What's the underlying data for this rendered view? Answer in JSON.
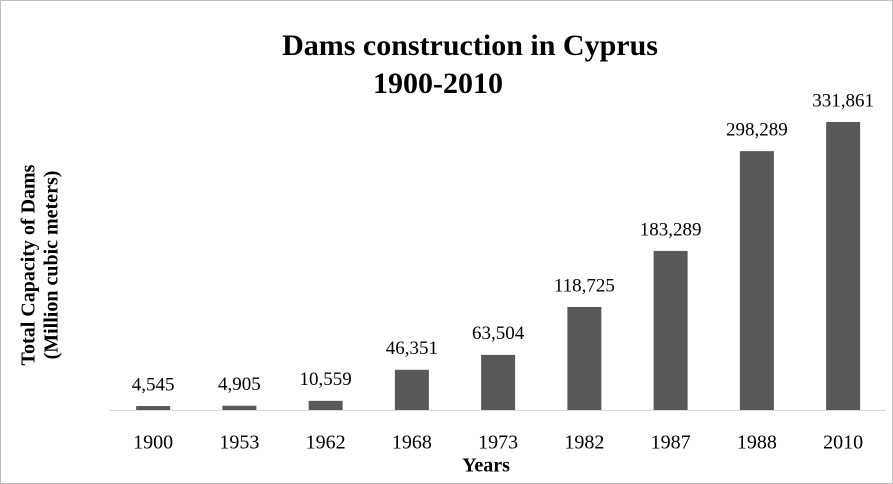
{
  "chart_data": {
    "type": "bar",
    "title": "Dams construction in Cyprus",
    "subtitle": "1900-2010",
    "x_label": "Years",
    "y_label": [
      "Total Capacity of Dams",
      "(Million cubic meters)"
    ],
    "categories": [
      "1900",
      "1953",
      "1962",
      "1968",
      "1973",
      "1982",
      "1987",
      "1988",
      "2010"
    ],
    "values": [
      4545,
      4905,
      10559,
      46351,
      63504,
      118725,
      183289,
      298289,
      331861
    ],
    "value_labels": [
      "4,545",
      "4,905",
      "10,559",
      "46,351",
      "63,504",
      "118,725",
      "183,289",
      "298,289",
      "331,861"
    ],
    "color": "#595959"
  }
}
